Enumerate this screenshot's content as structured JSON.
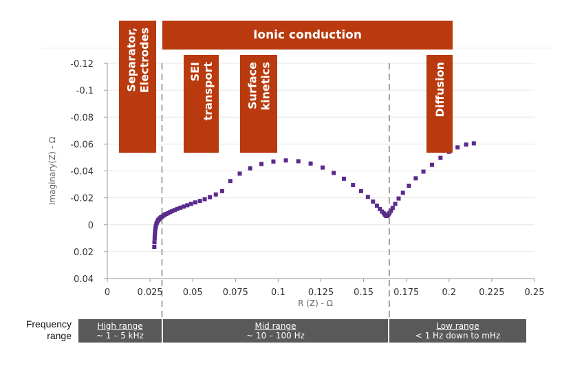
{
  "chart_data": {
    "type": "scatter",
    "xlabel": "R (Z) - Ω",
    "ylabel": "Imaginary(Z) - Ω",
    "xlim": [
      0,
      0.25
    ],
    "ylim": [
      0.04,
      -0.12
    ],
    "y_inverted": true,
    "x_ticks": [
      "0",
      "0.025",
      "0.05",
      "0.075",
      "0.1",
      "0.125",
      "0.15",
      "0.175",
      "0.2",
      "0.225",
      "0.25"
    ],
    "y_ticks": [
      "-0.12",
      "-0.1",
      "-0.08",
      "-0.06",
      "-0.04",
      "-0.02",
      "0",
      "0.02",
      "0.04"
    ],
    "grid": "horizontal",
    "marker_color": "#5a2a8c",
    "series": [
      {
        "x": [
          0.0275,
          0.0276,
          0.0277,
          0.0278,
          0.0279,
          0.028,
          0.0282,
          0.0284,
          0.0287,
          0.029,
          0.0294,
          0.0298,
          0.0303,
          0.0308,
          0.0314,
          0.032,
          0.0328,
          0.0336,
          0.0345,
          0.0356,
          0.0368,
          0.038,
          0.0395,
          0.041,
          0.0428,
          0.0447,
          0.0468,
          0.049,
          0.0515,
          0.0542,
          0.057,
          0.06,
          0.0635,
          0.0672,
          0.072,
          0.0775,
          0.0836,
          0.0902,
          0.0972,
          0.1045,
          0.1118,
          0.119,
          0.126,
          0.1325,
          0.1385,
          0.1438,
          0.1485,
          0.1525,
          0.1555,
          0.1578,
          0.1595,
          0.1608,
          0.1618,
          0.1625,
          0.163,
          0.1634,
          0.1637,
          0.1641,
          0.1646,
          0.1652,
          0.166,
          0.167,
          0.1685,
          0.1705,
          0.173,
          0.1765,
          0.1805,
          0.185,
          0.19,
          0.195,
          0.2,
          0.205,
          0.21,
          0.2145
        ],
        "y": [
          0.0165,
          0.013,
          0.01,
          0.008,
          0.0065,
          0.0045,
          0.0025,
          0.001,
          -0.0005,
          -0.0015,
          -0.0025,
          -0.0035,
          -0.004,
          -0.0048,
          -0.0055,
          -0.006,
          -0.0068,
          -0.0075,
          -0.008,
          -0.0087,
          -0.0095,
          -0.0102,
          -0.011,
          -0.0118,
          -0.0127,
          -0.0135,
          -0.0145,
          -0.0155,
          -0.0166,
          -0.0177,
          -0.019,
          -0.0205,
          -0.0225,
          -0.025,
          -0.0325,
          -0.038,
          -0.042,
          -0.0452,
          -0.047,
          -0.0478,
          -0.0472,
          -0.0455,
          -0.0425,
          -0.0385,
          -0.0342,
          -0.0295,
          -0.025,
          -0.0207,
          -0.0172,
          -0.0142,
          -0.0117,
          -0.0098,
          -0.0085,
          -0.0075,
          -0.0069,
          -0.0065,
          -0.0066,
          -0.007,
          -0.0078,
          -0.009,
          -0.0105,
          -0.0125,
          -0.0155,
          -0.0195,
          -0.0238,
          -0.029,
          -0.0345,
          -0.0395,
          -0.0445,
          -0.0497,
          -0.0542,
          -0.0575,
          -0.0596,
          -0.0605
        ]
      }
    ],
    "region_boundaries_x": [
      0.032,
      0.165
    ],
    "annotations": [
      {
        "text": "Ionic conduction",
        "orientation": "horizontal"
      },
      {
        "text": "Separator, Electrodes",
        "lines": [
          "Separator,",
          "Electrodes"
        ],
        "orientation": "vertical"
      },
      {
        "text": "SEI transport",
        "lines": [
          "SEI",
          "transport"
        ],
        "orientation": "vertical"
      },
      {
        "text": "Surface kinetics",
        "lines": [
          "Surface",
          "kinetics"
        ],
        "orientation": "vertical"
      },
      {
        "text": "Diffusion",
        "lines": [
          "Diffusion"
        ],
        "orientation": "vertical"
      }
    ],
    "banner_color": "#b83a0e"
  },
  "frequency": {
    "label_line1": "Frequency",
    "label_line2": "range",
    "bands": [
      {
        "title": "High range",
        "range": "~ 1 – 5 kHz"
      },
      {
        "title": "Mid range",
        "range": "~ 10 – 100 Hz"
      },
      {
        "title": "Low range",
        "range": "< 1 Hz down to mHz"
      }
    ]
  }
}
